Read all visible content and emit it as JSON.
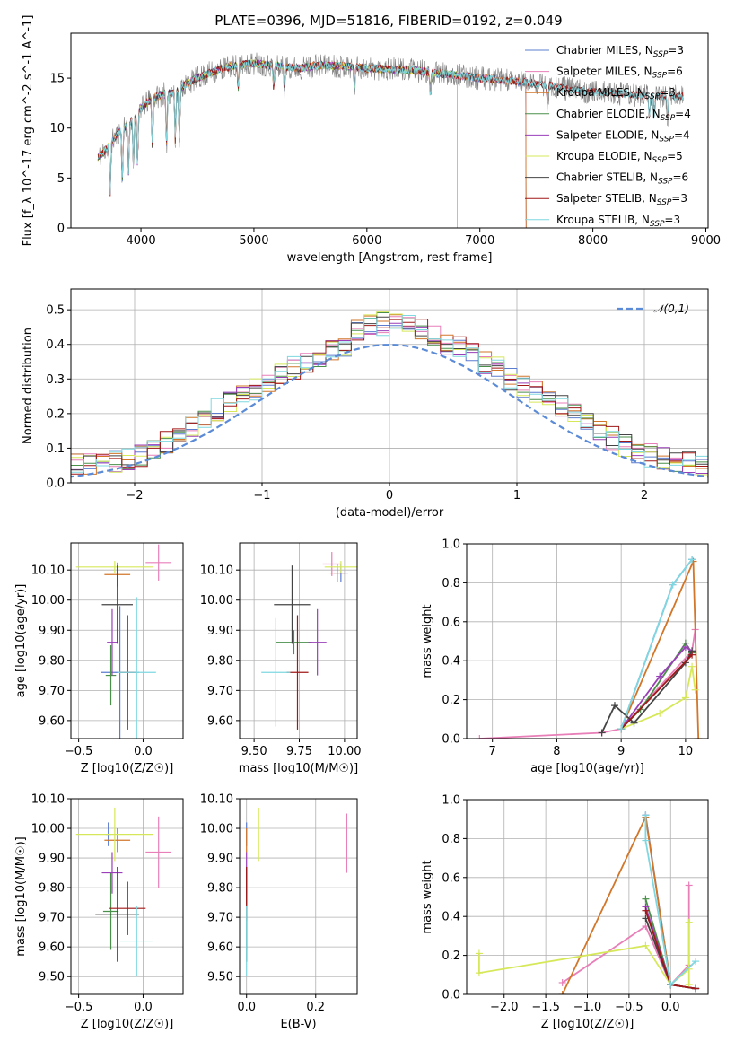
{
  "title": "PLATE=0396, MJD=51816, FIBERID=0192, z=0.049",
  "colors": {
    "Chabrier MILES": "#5b7ccf",
    "Salpeter MILES": "#e87fb8",
    "Kroupa MILES": "#d2762a",
    "Chabrier ELODIE": "#4a8f4a",
    "Salpeter ELODIE": "#9a3fb8",
    "Kroupa ELODIE": "#d6e85a",
    "Chabrier STELIB": "#444444",
    "Salpeter STELIB": "#a01818",
    "Kroupa STELIB": "#7fd8e0",
    "data": "#808080",
    "normal": "#5b8bd6"
  },
  "chart_data": [
    {
      "id": "spectrum",
      "type": "line",
      "title": "PLATE=0396, MJD=51816, FIBERID=0192, z=0.049",
      "xlabel": "wavelength [Angstrom, rest frame]",
      "ylabel": "Flux [f_λ 10^-17 erg cm^-2 s^-1 A^-1]",
      "xlim": [
        3380,
        9020
      ],
      "ylim": [
        0,
        19.5
      ],
      "xticks": [
        4000,
        5000,
        6000,
        7000,
        8000,
        9000
      ],
      "yticks": [
        0,
        5,
        10,
        15
      ],
      "legend_position": "top-right",
      "legend": [
        "Chabrier MILES, N_SSP=3",
        "Salpeter MILES, N_SSP=6",
        "Kroupa MILES, N_SSP=3",
        "Chabrier ELODIE, N_SSP=4",
        "Salpeter ELODIE, N_SSP=4",
        "Kroupa ELODIE, N_SSP=5",
        "Chabrier STELIB, N_SSP=6",
        "Salpeter STELIB, N_SSP=3",
        "Kroupa STELIB, N_SSP=3"
      ],
      "continuum": [
        [
          3620,
          7
        ],
        [
          3700,
          8
        ],
        [
          3800,
          9.5
        ],
        [
          3900,
          10.5
        ],
        [
          4000,
          12
        ],
        [
          4100,
          13
        ],
        [
          4200,
          13.4
        ],
        [
          4300,
          13.6
        ],
        [
          4400,
          14.4
        ],
        [
          4500,
          15
        ],
        [
          4600,
          15.5
        ],
        [
          4800,
          16.2
        ],
        [
          5000,
          16.5
        ],
        [
          5200,
          16.2
        ],
        [
          5400,
          16
        ],
        [
          5600,
          16.3
        ],
        [
          5800,
          16.2
        ],
        [
          6000,
          16
        ],
        [
          6200,
          15.9
        ],
        [
          6400,
          15.8
        ],
        [
          6600,
          15.5
        ],
        [
          6800,
          15.3
        ],
        [
          7000,
          15
        ],
        [
          7200,
          14.8
        ],
        [
          7400,
          14.6
        ],
        [
          7600,
          14.3
        ],
        [
          7800,
          13.9
        ],
        [
          8000,
          13.6
        ],
        [
          8200,
          13.5
        ],
        [
          8400,
          13.3
        ],
        [
          8600,
          13.2
        ],
        [
          8800,
          13.2
        ]
      ],
      "spectrum_range": [
        3620,
        8800
      ],
      "model_ranges": {
        "MILES": [
          3620,
          7410
        ],
        "ELODIE": [
          3620,
          6800
        ],
        "STELIB": [
          3620,
          8800
        ]
      }
    },
    {
      "id": "residuals",
      "type": "line",
      "xlabel": "(data-model)/error",
      "ylabel": "Normed distribution",
      "xlim": [
        -2.5,
        2.5
      ],
      "ylim": [
        0,
        0.56
      ],
      "xticks": [
        -2,
        -1,
        0,
        1,
        2
      ],
      "yticks": [
        0.0,
        0.1,
        0.2,
        0.3,
        0.4,
        0.5
      ],
      "grid": true,
      "legend_position": "top-right",
      "legend": [
        "𝒩(0,1)"
      ],
      "bin_width": 0.1,
      "histogram_mean": [
        0.03,
        0.03,
        0.03,
        0.04,
        0.04,
        0.05,
        0.05,
        0.06,
        0.06,
        0.07,
        0.08,
        0.1,
        0.12,
        0.14,
        0.16,
        0.18,
        0.21,
        0.23,
        0.25,
        0.27,
        0.29,
        0.31,
        0.33,
        0.35,
        0.36,
        0.38,
        0.4,
        0.44,
        0.46,
        0.46,
        0.47,
        0.46,
        0.44,
        0.42,
        0.4,
        0.39,
        0.37,
        0.35,
        0.33,
        0.3,
        0.28,
        0.26,
        0.24,
        0.22,
        0.2,
        0.17,
        0.15,
        0.13,
        0.11,
        0.09,
        0.08,
        0.07,
        0.06,
        0.06,
        0.05,
        0.04,
        0.04,
        0.03,
        0.03,
        0.03
      ]
    },
    {
      "id": "age-vs-Z",
      "type": "scatter",
      "xlabel": "Z [log10(Z/Z☉)]",
      "ylabel": "age  [log10(age/yr)]",
      "xlim": [
        -0.56,
        0.31
      ],
      "ylim": [
        9.54,
        10.19
      ],
      "xticks": [
        -0.5,
        0.0
      ],
      "yticks": [
        9.6,
        9.7,
        9.8,
        9.9,
        10.0,
        10.1
      ],
      "grid": true,
      "points": [
        {
          "model": "Chabrier MILES",
          "x": -0.18,
          "y": 9.76,
          "xerr": 0.15,
          "yerr": 0.22
        },
        {
          "model": "Salpeter MILES",
          "x": 0.12,
          "y": 10.125,
          "xerr": 0.1,
          "yerr": 0.06
        },
        {
          "model": "Kroupa MILES",
          "x": -0.2,
          "y": 10.085,
          "xerr": 0.1,
          "yerr": 0.04
        },
        {
          "model": "Chabrier ELODIE",
          "x": -0.25,
          "y": 9.75,
          "xerr": 0.04,
          "yerr": 0.1
        },
        {
          "model": "Salpeter ELODIE",
          "x": -0.24,
          "y": 9.86,
          "xerr": 0.04,
          "yerr": 0.11
        },
        {
          "model": "Kroupa ELODIE",
          "x": -0.22,
          "y": 10.11,
          "xerr": 0.3,
          "yerr": 0.02
        },
        {
          "model": "Chabrier STELIB",
          "x": -0.2,
          "y": 9.985,
          "xerr": 0.12,
          "yerr": 0.13
        },
        {
          "model": "Salpeter STELIB",
          "x": -0.12,
          "y": 9.76,
          "xerr": 0.06,
          "yerr": 0.19
        },
        {
          "model": "Kroupa STELIB",
          "x": -0.05,
          "y": 9.76,
          "xerr": 0.15,
          "yerr": 0.25
        }
      ]
    },
    {
      "id": "age-vs-mass",
      "type": "scatter",
      "xlabel": "mass [log10(M/M☉)]",
      "ylabel": "",
      "xlim": [
        9.42,
        10.07
      ],
      "ylim": [
        9.54,
        10.19
      ],
      "xticks": [
        9.5,
        9.75,
        10.0
      ],
      "yticks": [
        9.6,
        9.7,
        9.8,
        9.9,
        10.0,
        10.1
      ],
      "grid": true,
      "points": [
        {
          "model": "Chabrier MILES",
          "x": 9.98,
          "y": 10.09,
          "xerr": 0.04,
          "yerr": 0.03
        },
        {
          "model": "Salpeter MILES",
          "x": 9.93,
          "y": 10.12,
          "xerr": 0.05,
          "yerr": 0.04
        },
        {
          "model": "Kroupa MILES",
          "x": 9.96,
          "y": 10.09,
          "xerr": 0.04,
          "yerr": 0.03
        },
        {
          "model": "Chabrier ELODIE",
          "x": 9.72,
          "y": 9.86,
          "xerr": 0.1,
          "yerr": 0.04
        },
        {
          "model": "Salpeter ELODIE",
          "x": 9.85,
          "y": 9.86,
          "xerr": 0.05,
          "yerr": 0.11
        },
        {
          "model": "Kroupa ELODIE",
          "x": 9.98,
          "y": 10.11,
          "xerr": 0.09,
          "yerr": 0.02
        },
        {
          "model": "Chabrier STELIB",
          "x": 9.71,
          "y": 9.985,
          "xerr": 0.1,
          "yerr": 0.13
        },
        {
          "model": "Salpeter STELIB",
          "x": 9.74,
          "y": 9.76,
          "xerr": 0.06,
          "yerr": 0.19
        },
        {
          "model": "Kroupa STELIB",
          "x": 9.62,
          "y": 9.76,
          "xerr": 0.08,
          "yerr": 0.18
        }
      ]
    },
    {
      "id": "mass-weight-vs-age",
      "type": "line",
      "xlabel": "age  [log10(age/yr)]",
      "ylabel": "mass weight",
      "xlim": [
        6.6,
        10.35
      ],
      "ylim": [
        0,
        1.0
      ],
      "xticks": [
        7,
        8,
        9,
        10
      ],
      "yticks": [
        0.0,
        0.2,
        0.4,
        0.6,
        0.8,
        1.0
      ],
      "grid": true,
      "series": [
        {
          "model": "Chabrier MILES",
          "points": [
            [
              9.0,
              0.05
            ],
            [
              9.8,
              0.79
            ],
            [
              10.1,
              0.92
            ]
          ]
        },
        {
          "model": "Salpeter MILES",
          "points": [
            [
              6.8,
              0.0
            ],
            [
              8.7,
              0.03
            ],
            [
              9.0,
              0.05
            ],
            [
              10.1,
              0.45
            ],
            [
              10.15,
              0.56
            ]
          ]
        },
        {
          "model": "Kroupa MILES",
          "points": [
            [
              9.0,
              0.05
            ],
            [
              10.12,
              0.91
            ],
            [
              10.2,
              0.0
            ]
          ]
        },
        {
          "model": "Chabrier ELODIE",
          "points": [
            [
              9.0,
              0.05
            ],
            [
              9.3,
              0.15
            ],
            [
              10.0,
              0.49
            ],
            [
              10.1,
              0.44
            ]
          ]
        },
        {
          "model": "Salpeter ELODIE",
          "points": [
            [
              9.0,
              0.05
            ],
            [
              9.6,
              0.32
            ],
            [
              10.0,
              0.47
            ],
            [
              10.1,
              0.45
            ]
          ]
        },
        {
          "model": "Kroupa ELODIE",
          "points": [
            [
              9.0,
              0.05
            ],
            [
              9.6,
              0.13
            ],
            [
              10.0,
              0.21
            ],
            [
              10.1,
              0.37
            ],
            [
              10.15,
              0.25
            ]
          ]
        },
        {
          "model": "Chabrier STELIB",
          "points": [
            [
              8.7,
              0.03
            ],
            [
              8.9,
              0.17
            ],
            [
              9.2,
              0.08
            ],
            [
              10.0,
              0.39
            ],
            [
              10.1,
              0.45
            ]
          ]
        },
        {
          "model": "Salpeter STELIB",
          "points": [
            [
              9.0,
              0.05
            ],
            [
              10.1,
              0.43
            ]
          ]
        },
        {
          "model": "Kroupa STELIB",
          "points": [
            [
              9.0,
              0.05
            ],
            [
              9.8,
              0.79
            ],
            [
              10.1,
              0.92
            ]
          ]
        }
      ]
    },
    {
      "id": "mass-vs-Z",
      "type": "scatter",
      "xlabel": "Z [log10(Z/Z☉)]",
      "ylabel": "mass [log10(M/M☉)]",
      "xlim": [
        -0.56,
        0.31
      ],
      "ylim": [
        9.44,
        10.1
      ],
      "xticks": [
        -0.5,
        0.0
      ],
      "yticks": [
        9.5,
        9.6,
        9.7,
        9.8,
        9.9,
        10.0,
        10.1
      ],
      "grid": true,
      "points": [
        {
          "model": "Chabrier MILES",
          "x": -0.27,
          "y": 9.98,
          "xerr": 0.02,
          "yerr": 0.04
        },
        {
          "model": "Salpeter MILES",
          "x": 0.12,
          "y": 9.92,
          "xerr": 0.1,
          "yerr": 0.12
        },
        {
          "model": "Kroupa MILES",
          "x": -0.2,
          "y": 9.96,
          "xerr": 0.1,
          "yerr": 0.04
        },
        {
          "model": "Chabrier ELODIE",
          "x": -0.25,
          "y": 9.72,
          "xerr": 0.06,
          "yerr": 0.13
        },
        {
          "model": "Salpeter ELODIE",
          "x": -0.24,
          "y": 9.85,
          "xerr": 0.08,
          "yerr": 0.07
        },
        {
          "model": "Kroupa ELODIE",
          "x": -0.22,
          "y": 9.98,
          "xerr": 0.3,
          "yerr": 0.09
        },
        {
          "model": "Chabrier STELIB",
          "x": -0.2,
          "y": 9.71,
          "xerr": 0.17,
          "yerr": 0.16
        },
        {
          "model": "Salpeter STELIB",
          "x": -0.12,
          "y": 9.73,
          "xerr": 0.14,
          "yerr": 0.09
        },
        {
          "model": "Kroupa STELIB",
          "x": -0.05,
          "y": 9.62,
          "xerr": 0.13,
          "yerr": 0.12
        }
      ]
    },
    {
      "id": "mass-vs-EBV",
      "type": "scatter",
      "xlabel": "E(B-V)",
      "ylabel": "",
      "xlim": [
        -0.02,
        0.32
      ],
      "ylim": [
        9.44,
        10.1
      ],
      "xticks": [
        0.0,
        0.2
      ],
      "yticks": [
        9.5,
        9.6,
        9.7,
        9.8,
        9.9,
        10.0,
        10.1
      ],
      "grid": true,
      "points": [
        {
          "model": "Chabrier MILES",
          "x": 0.0,
          "y": 9.98,
          "xerr": 0.0,
          "yerr": 0.04
        },
        {
          "model": "Salpeter MILES",
          "x": 0.29,
          "y": 9.95,
          "xerr": 0.0,
          "yerr": 0.1
        },
        {
          "model": "Kroupa MILES",
          "x": 0.0,
          "y": 9.96,
          "xerr": 0.0,
          "yerr": 0.04
        },
        {
          "model": "Chabrier ELODIE",
          "x": 0.0,
          "y": 9.72,
          "xerr": 0.0,
          "yerr": 0.13
        },
        {
          "model": "Salpeter ELODIE",
          "x": 0.0,
          "y": 9.85,
          "xerr": 0.0,
          "yerr": 0.07
        },
        {
          "model": "Kroupa ELODIE",
          "x": 0.035,
          "y": 9.98,
          "xerr": 0.0,
          "yerr": 0.09
        },
        {
          "model": "Chabrier STELIB",
          "x": 0.0,
          "y": 9.71,
          "xerr": 0.0,
          "yerr": 0.16
        },
        {
          "model": "Salpeter STELIB",
          "x": 0.0,
          "y": 9.78,
          "xerr": 0.0,
          "yerr": 0.09
        },
        {
          "model": "Kroupa STELIB",
          "x": 0.0,
          "y": 9.62,
          "xerr": 0.0,
          "yerr": 0.12
        }
      ]
    },
    {
      "id": "mass-weight-vs-Z",
      "type": "line",
      "xlabel": "Z [log10(Z/Z☉)]",
      "ylabel": "mass weight",
      "xlim": [
        -2.45,
        0.45
      ],
      "ylim": [
        0,
        1.0
      ],
      "xticks": [
        -2.0,
        -1.5,
        -1.0,
        -0.5,
        0.0
      ],
      "yticks": [
        0.0,
        0.2,
        0.4,
        0.6,
        0.8,
        1.0
      ],
      "grid": true,
      "series": [
        {
          "model": "Chabrier MILES",
          "points": [
            [
              -0.3,
              0.92
            ],
            [
              -0.3,
              0.92
            ],
            [
              0.0,
              0.05
            ],
            [
              0.3,
              0.03
            ]
          ]
        },
        {
          "model": "Salpeter MILES",
          "points": [
            [
              -1.3,
              0.06
            ],
            [
              -0.3,
              0.35
            ],
            [
              0.0,
              0.05
            ],
            [
              0.22,
              0.15
            ],
            [
              0.22,
              0.56
            ]
          ]
        },
        {
          "model": "Kroupa MILES",
          "points": [
            [
              -1.3,
              0.0
            ],
            [
              -0.3,
              0.91
            ],
            [
              0.0,
              0.05
            ],
            [
              0.3,
              0.03
            ]
          ]
        },
        {
          "model": "Chabrier ELODIE",
          "points": [
            [
              -0.3,
              0.49
            ],
            [
              0.0,
              0.05
            ],
            [
              0.3,
              0.03
            ]
          ]
        },
        {
          "model": "Salpeter ELODIE",
          "points": [
            [
              -0.3,
              0.45
            ],
            [
              0.0,
              0.05
            ],
            [
              0.3,
              0.03
            ]
          ]
        },
        {
          "model": "Kroupa ELODIE",
          "points": [
            [
              -2.3,
              0.21
            ],
            [
              -2.3,
              0.11
            ],
            [
              -0.3,
              0.25
            ],
            [
              0.0,
              0.05
            ],
            [
              0.22,
              0.13
            ],
            [
              0.22,
              0.37
            ],
            [
              0.22,
              0.05
            ]
          ]
        },
        {
          "model": "Chabrier STELIB",
          "points": [
            [
              -0.3,
              0.39
            ],
            [
              0.0,
              0.05
            ],
            [
              0.3,
              0.03
            ]
          ]
        },
        {
          "model": "Salpeter STELIB",
          "points": [
            [
              -0.3,
              0.43
            ],
            [
              0.0,
              0.05
            ],
            [
              0.3,
              0.03
            ]
          ]
        },
        {
          "model": "Kroupa STELIB",
          "points": [
            [
              -0.3,
              0.92
            ],
            [
              -0.3,
              0.79
            ],
            [
              0.0,
              0.05
            ],
            [
              0.3,
              0.17
            ]
          ]
        }
      ]
    }
  ]
}
